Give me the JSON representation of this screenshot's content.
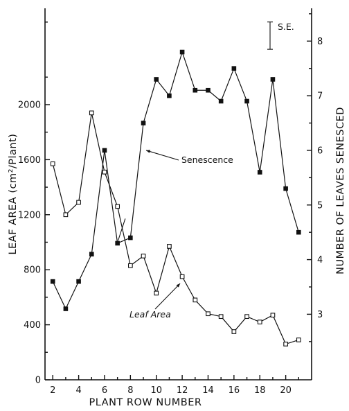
{
  "chart_data": {
    "type": "line",
    "title": "",
    "xlabel": "PLANT ROW NUMBER",
    "ylabel_left": "LEAF AREA (cm²/Plant)",
    "ylabel_right": "NUMBER OF LEAVES SENESCED",
    "xlim": [
      1.4,
      22
    ],
    "ylim_left": [
      0,
      2700
    ],
    "ylim_right": [
      1.8,
      8.6
    ],
    "x_ticks": [
      2,
      4,
      6,
      8,
      10,
      12,
      14,
      16,
      18,
      20
    ],
    "y_left_ticks": [
      0,
      400,
      800,
      1200,
      1600,
      2000
    ],
    "y_right_ticks": [
      3,
      4,
      5,
      6,
      7,
      8
    ],
    "x_minor_ticks": [
      3,
      5,
      7,
      9,
      11,
      13,
      15,
      17,
      19,
      21
    ],
    "series": [
      {
        "name": "Leaf Area",
        "axis": "left",
        "marker": "open-square",
        "x": [
          2,
          3,
          4,
          5,
          6,
          7,
          8,
          9,
          10,
          11,
          12,
          13,
          14,
          15,
          16,
          17,
          18,
          19,
          20,
          21
        ],
        "values": [
          1570,
          1200,
          1290,
          1940,
          1510,
          1260,
          830,
          900,
          630,
          970,
          750,
          580,
          480,
          460,
          350,
          460,
          420,
          470,
          260,
          290
        ]
      },
      {
        "name": "Senescence",
        "axis": "right",
        "marker": "filled-square",
        "x": [
          2,
          3,
          4,
          5,
          6,
          7,
          8,
          9,
          10,
          11,
          12,
          13,
          14,
          15,
          16,
          17,
          18,
          19,
          20,
          21
        ],
        "values": [
          3.6,
          3.1,
          3.6,
          4.1,
          6.0,
          4.3,
          4.4,
          6.5,
          7.3,
          7.0,
          7.8,
          7.1,
          7.1,
          6.9,
          7.5,
          6.9,
          5.6,
          7.3,
          5.3,
          4.5
        ]
      }
    ],
    "annotations": {
      "se_label": "S.E.",
      "se_span_right_units": [
        7.85,
        8.35
      ],
      "senescence_label": "Senescence",
      "leaf_area_label": "Leaf Area"
    }
  }
}
